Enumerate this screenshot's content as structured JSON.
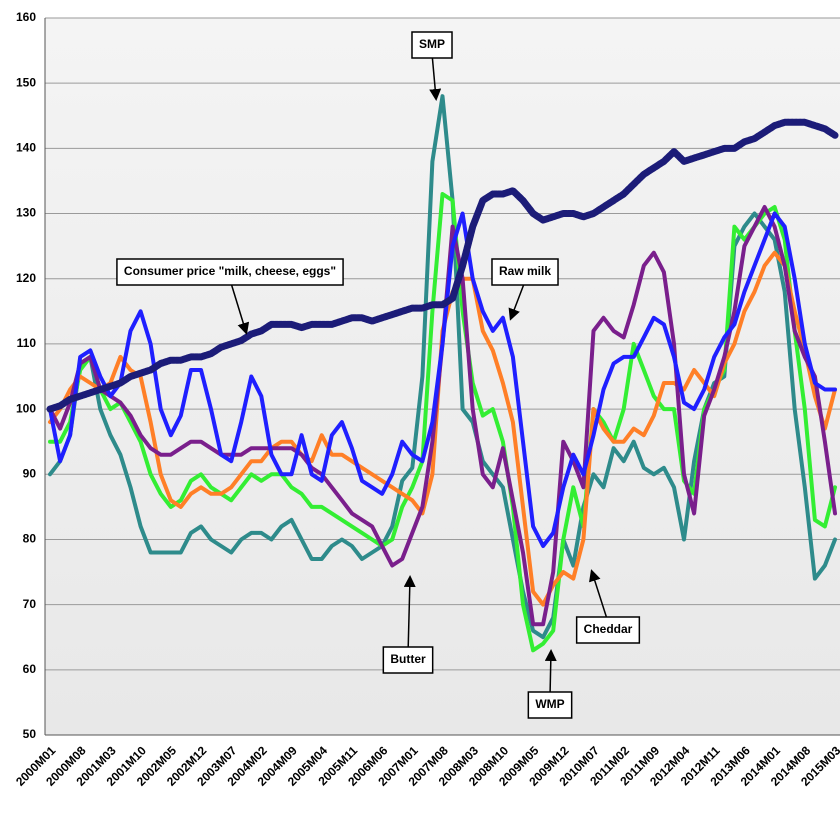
{
  "chart_data": {
    "type": "line",
    "categories": [
      "2000M01",
      null,
      null,
      "2000M08",
      null,
      null,
      "2001M03",
      null,
      null,
      "2001M10",
      null,
      null,
      "2002M05",
      null,
      null,
      "2002M12",
      null,
      null,
      "2003M07",
      null,
      null,
      "2004M02",
      null,
      null,
      "2004M09",
      null,
      null,
      "2005M04",
      null,
      null,
      "2005M11",
      null,
      null,
      "2006M06",
      null,
      null,
      "2007M01",
      null,
      null,
      "2007M08",
      null,
      null,
      "2008M03",
      null,
      null,
      "2008M10",
      null,
      null,
      "2009M05",
      null,
      null,
      "2009M12",
      null,
      null,
      "2010M07",
      null,
      null,
      "2011M02",
      null,
      null,
      "2011M09",
      null,
      null,
      "2012M04",
      null,
      null,
      "2012M11",
      null,
      null,
      "2013M06",
      null,
      null,
      "2014M01",
      null,
      null,
      "2014M08",
      null,
      null,
      "2015M03"
    ],
    "series": [
      {
        "name": "Consumer price \"milk, cheese, eggs\"",
        "color": "#1c1c78",
        "values": [
          100,
          100.5,
          101.5,
          102,
          102.5,
          103,
          103.5,
          104,
          105,
          105.5,
          106,
          107,
          107.5,
          107.5,
          108,
          108,
          108.5,
          109.5,
          110,
          110.5,
          111.5,
          112,
          113,
          113,
          113,
          112.5,
          113,
          113,
          113,
          113.5,
          114,
          114,
          113.5,
          114,
          114.5,
          115,
          115.5,
          115.5,
          116,
          116,
          117,
          122,
          128,
          132,
          133,
          133,
          133.5,
          132,
          130,
          129,
          129.5,
          130,
          130,
          129.5,
          130,
          131,
          132,
          133,
          134.5,
          136,
          137,
          138,
          139.5,
          138,
          138.5,
          139,
          139.5,
          140,
          140,
          141,
          141.5,
          142.5,
          143.5,
          144,
          144,
          144,
          143.5,
          143,
          142
        ]
      },
      {
        "name": "Raw milk",
        "color": "#1f1fff",
        "values": [
          100,
          92,
          96,
          108,
          109,
          105,
          102,
          104,
          112,
          115,
          110,
          100,
          96,
          99,
          106,
          106,
          100,
          93,
          92,
          98,
          105,
          102,
          93,
          90,
          90,
          96,
          90,
          89,
          96,
          98,
          94,
          89,
          88,
          87,
          90,
          95,
          93,
          92,
          98,
          110,
          125,
          130,
          120,
          115,
          112,
          114,
          108,
          95,
          82,
          79,
          81,
          88,
          93,
          90,
          96,
          103,
          107,
          108,
          108,
          111,
          114,
          113,
          108,
          101,
          100,
          103,
          108,
          111,
          113,
          118,
          122,
          126,
          130,
          128,
          120,
          110,
          104,
          103,
          103
        ]
      },
      {
        "name": "Butter",
        "color": "#7a1f8c",
        "values": [
          100,
          97,
          101,
          107,
          108,
          103,
          102,
          101,
          99,
          96,
          94,
          93,
          93,
          94,
          95,
          95,
          94,
          93,
          93,
          93,
          94,
          94,
          94,
          94,
          94,
          93,
          91,
          90,
          88,
          86,
          84,
          83,
          82,
          79,
          76,
          77,
          81,
          85,
          95,
          110,
          128,
          120,
          100,
          90,
          88,
          94,
          86,
          78,
          67,
          67,
          75,
          95,
          92,
          88,
          112,
          114,
          112,
          111,
          116,
          122,
          124,
          121,
          110,
          90,
          84,
          99,
          103,
          108,
          115,
          125,
          128,
          131,
          128,
          122,
          112,
          108,
          105,
          95,
          84
        ]
      },
      {
        "name": "Cheddar",
        "color": "#ff7f27",
        "values": [
          98,
          100,
          103,
          105,
          104,
          103,
          104,
          108,
          106,
          105,
          98,
          90,
          86,
          85,
          87,
          88,
          87,
          87,
          88,
          90,
          92,
          92,
          94,
          95,
          95,
          93,
          92,
          96,
          93,
          93,
          92,
          91,
          90,
          89,
          88,
          87,
          86,
          84,
          90,
          112,
          118,
          120,
          120,
          112,
          109,
          104,
          98,
          85,
          72,
          70,
          73,
          75,
          74,
          80,
          100,
          97,
          95,
          95,
          97,
          96,
          99,
          104,
          104,
          103,
          106,
          104,
          102,
          107,
          110,
          115,
          118,
          122,
          124,
          122,
          115,
          109,
          102,
          97,
          103
        ]
      },
      {
        "name": "WMP",
        "color": "#33ee33",
        "values": [
          95,
          95,
          98,
          106,
          108,
          103,
          100,
          101,
          98,
          95,
          90,
          87,
          85,
          86,
          89,
          90,
          88,
          87,
          86,
          88,
          90,
          89,
          90,
          90,
          88,
          87,
          85,
          85,
          84,
          83,
          82,
          81,
          80,
          79,
          80,
          85,
          88,
          92,
          115,
          133,
          132,
          115,
          104,
          99,
          100,
          95,
          85,
          70,
          63,
          64,
          66,
          80,
          88,
          82,
          100,
          98,
          95,
          100,
          110,
          106,
          102,
          100,
          100,
          89,
          87,
          100,
          103,
          106,
          128,
          126,
          128,
          130,
          131,
          126,
          112,
          100,
          83,
          82,
          88
        ]
      },
      {
        "name": "SMP",
        "color": "#2e8b8b",
        "values": [
          90,
          92,
          96,
          107,
          108,
          100,
          96,
          93,
          88,
          82,
          78,
          78,
          78,
          78,
          81,
          82,
          80,
          79,
          78,
          80,
          81,
          81,
          80,
          82,
          83,
          80,
          77,
          77,
          79,
          80,
          79,
          77,
          78,
          79,
          82,
          89,
          91,
          105,
          138,
          148,
          132,
          100,
          98,
          92,
          90,
          88,
          80,
          72,
          66,
          65,
          68,
          80,
          76,
          85,
          90,
          88,
          94,
          92,
          95,
          91,
          90,
          91,
          88,
          80,
          92,
          100,
          104,
          105,
          125,
          128,
          130,
          128,
          126,
          118,
          100,
          88,
          74,
          76,
          80
        ]
      }
    ],
    "ylim": [
      50,
      160
    ],
    "yticks": [
      50,
      60,
      70,
      80,
      90,
      100,
      110,
      120,
      130,
      140,
      150,
      160
    ],
    "grid": true
  }
}
